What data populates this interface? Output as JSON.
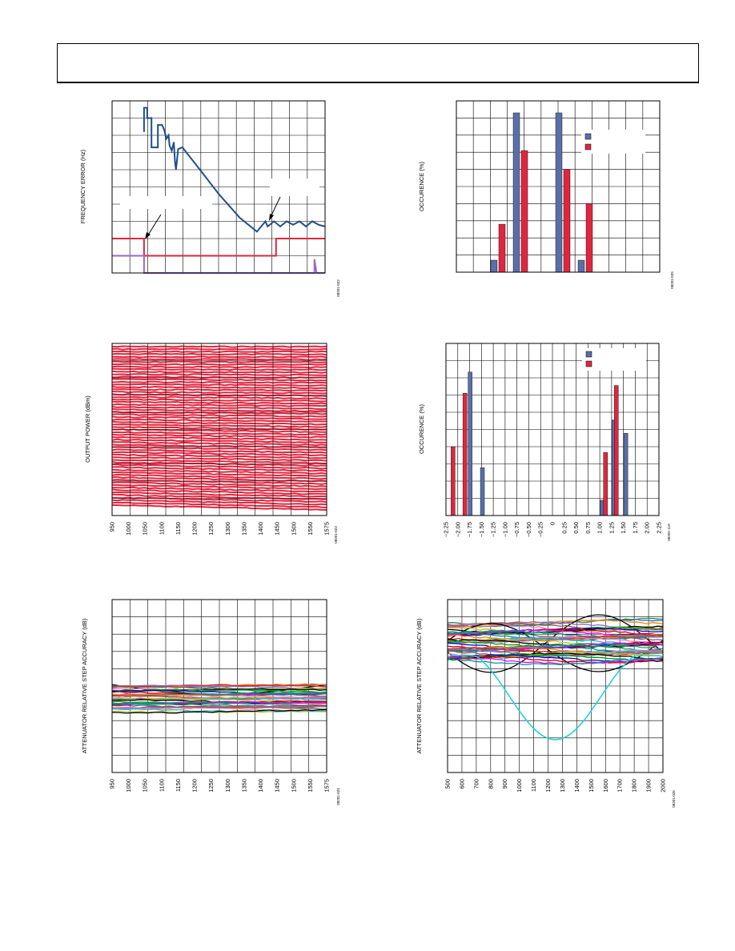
{
  "header": {
    "text": ""
  },
  "chart_data": [
    {
      "id": "freq-error",
      "type": "line",
      "ylabel": "FREQUENCY ERROR (Hz)",
      "figure_code": "08201-022",
      "annotations": [
        "",
        ""
      ],
      "colors": [
        "#1f4e8c",
        "#e0263f",
        "#9966cc"
      ],
      "series": [
        {
          "name": "",
          "color": "#1f4e8c",
          "points": [
            [
              0.15,
              0.18
            ],
            [
              0.15,
              0.04
            ],
            [
              0.165,
              0.04
            ],
            [
              0.165,
              0.1
            ],
            [
              0.185,
              0.1
            ],
            [
              0.185,
              0.27
            ],
            [
              0.215,
              0.27
            ],
            [
              0.215,
              0.14
            ],
            [
              0.235,
              0.14
            ],
            [
              0.245,
              0.17
            ],
            [
              0.255,
              0.22
            ],
            [
              0.265,
              0.2
            ],
            [
              0.27,
              0.26
            ],
            [
              0.28,
              0.29
            ],
            [
              0.29,
              0.24
            ],
            [
              0.295,
              0.35
            ],
            [
              0.3,
              0.4
            ],
            [
              0.31,
              0.28
            ],
            [
              0.33,
              0.27
            ],
            [
              0.4,
              0.38
            ],
            [
              0.5,
              0.54
            ],
            [
              0.6,
              0.68
            ],
            [
              0.68,
              0.76
            ],
            [
              0.72,
              0.7
            ],
            [
              0.73,
              0.73
            ],
            [
              0.76,
              0.7
            ],
            [
              0.79,
              0.73
            ],
            [
              0.82,
              0.7
            ],
            [
              0.85,
              0.72
            ],
            [
              0.88,
              0.7
            ],
            [
              0.91,
              0.73
            ],
            [
              0.94,
              0.7
            ],
            [
              0.97,
              0.72
            ],
            [
              1.0,
              0.73
            ]
          ]
        },
        {
          "name": "",
          "color": "#e0263f",
          "points": [
            [
              0.0,
              0.8
            ],
            [
              0.15,
              0.8
            ],
            [
              0.15,
              0.9
            ],
            [
              0.77,
              0.9
            ],
            [
              0.77,
              0.8
            ],
            [
              1.0,
              0.8
            ]
          ]
        },
        {
          "name": "",
          "color": "#9966cc",
          "points": [
            [
              0.0,
              0.9
            ],
            [
              0.15,
              0.9
            ],
            [
              0.15,
              1.0
            ],
            [
              0.95,
              1.0
            ],
            [
              0.95,
              0.92
            ],
            [
              0.96,
              1.0
            ],
            [
              1.0,
              1.0
            ]
          ]
        }
      ]
    },
    {
      "id": "occurrence-1",
      "type": "bar",
      "ylabel": "OCCURENCE (%)",
      "figure_code": "08201-025",
      "legend": [
        {
          "name": "",
          "color": "#5a6fa8"
        },
        {
          "name": "",
          "color": "#e0263f"
        }
      ],
      "categories": [
        "",
        "",
        "",
        ""
      ],
      "series": [
        {
          "name": "",
          "color": "#5a6fa8",
          "values": [
            7,
            93,
            93,
            7
          ]
        },
        {
          "name": "",
          "color": "#e0263f",
          "values": [
            28,
            71,
            60,
            40
          ]
        }
      ],
      "ylim": [
        0,
        100
      ]
    },
    {
      "id": "output-power",
      "type": "line",
      "ylabel": "OUTPUT POWER (dBm)",
      "figure_code": "08201-023",
      "x_ticks": [
        "950",
        "1000",
        "1050",
        "1100",
        "1150",
        "1200",
        "1250",
        "1300",
        "1350",
        "1400",
        "1450",
        "1500",
        "1550",
        "1575"
      ],
      "series_color": "#e0263f",
      "series_count": 64
    },
    {
      "id": "occurrence-2",
      "type": "bar",
      "ylabel": "OCCURENCE (%)",
      "figure_code": "08201-119",
      "x_ticks": [
        "−2.25",
        "−2.00",
        "−1.75",
        "−1.50",
        "−1.25",
        "−1.00",
        "−0.75",
        "−0.50",
        "−0.25",
        "0",
        "0.25",
        "0.50",
        "0.75",
        "1.00",
        "1.25",
        "1.50",
        "1.75",
        "2.00",
        "2.25"
      ],
      "legend": [
        {
          "name": "",
          "color": "#5a6fa8"
        },
        {
          "name": "",
          "color": "#e0263f"
        }
      ],
      "bars": [
        {
          "x": -2.1,
          "value": 36,
          "color": "#e0263f"
        },
        {
          "x": -1.85,
          "value": 64,
          "color": "#e0263f"
        },
        {
          "x": -1.74,
          "value": 75,
          "color": "#5a6fa8"
        },
        {
          "x": -1.48,
          "value": 25,
          "color": "#5a6fa8"
        },
        {
          "x": 1.05,
          "value": 8,
          "color": "#5a6fa8"
        },
        {
          "x": 1.12,
          "value": 33,
          "color": "#e0263f"
        },
        {
          "x": 1.3,
          "value": 50,
          "color": "#5a6fa8"
        },
        {
          "x": 1.35,
          "value": 68,
          "color": "#e0263f"
        },
        {
          "x": 1.55,
          "value": 43,
          "color": "#5a6fa8"
        }
      ],
      "xlim": [
        -2.25,
        2.25
      ],
      "ylim": [
        0,
        90
      ]
    },
    {
      "id": "step-accuracy-1",
      "type": "line",
      "ylabel": "ATTENUATOR RELATIVE STEP ACCURACY (dB)",
      "figure_code": "08201-024",
      "x_ticks": [
        "950",
        "1000",
        "1050",
        "1100",
        "1150",
        "1200",
        "1250",
        "1300",
        "1350",
        "1400",
        "1450",
        "1500",
        "1550",
        "1575"
      ],
      "colors": [
        "#2e8b57",
        "#1f77b4",
        "#ff7f0e",
        "#d62728",
        "#9467bd",
        "#8c564b",
        "#e377c2",
        "#17becf",
        "#bcbd22",
        "#000000",
        "#00a000",
        "#0000cc",
        "#cc0000",
        "#ff00ff",
        "#009999"
      ],
      "band_center": 0.52
    },
    {
      "id": "step-accuracy-2",
      "type": "line",
      "ylabel": "ATTENUATOR RELATIVE STEP ACCURACY (dB)",
      "figure_code": "08201-026",
      "x_ticks": [
        "500",
        "600",
        "700",
        "800",
        "900",
        "1000",
        "1100",
        "1200",
        "1300",
        "1400",
        "1500",
        "1600",
        "1700",
        "1800",
        "1900",
        "2000"
      ],
      "colors": [
        "#2e8b57",
        "#1f77b4",
        "#ff7f0e",
        "#d62728",
        "#9467bd",
        "#8c564b",
        "#e377c2",
        "#17becf",
        "#bcbd22",
        "#000000",
        "#00a000",
        "#0000cc",
        "#cc0000",
        "#ff00ff",
        "#009999"
      ],
      "cyan_color": "#1fd3d8"
    }
  ]
}
